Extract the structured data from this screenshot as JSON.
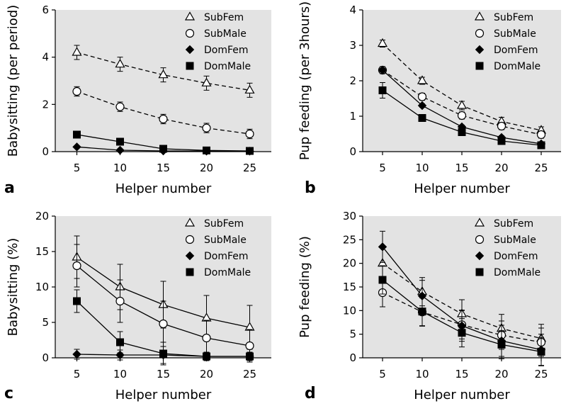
{
  "chart_data": [
    {
      "panel": "a",
      "type": "line",
      "xlabel": "Helper number",
      "ylabel": "Babysitting (per period)",
      "x": [
        5,
        10,
        15,
        20,
        25
      ],
      "xticks": [
        "5",
        "10",
        "15",
        "20",
        "25"
      ],
      "ylim": [
        0,
        6
      ],
      "yticks": [
        "0",
        "2",
        "4",
        "6"
      ],
      "grid": false,
      "legend": "top-right",
      "series": [
        {
          "name": "SubFem",
          "marker": "triangle-open",
          "dash": true,
          "values": [
            4.2,
            3.7,
            3.25,
            2.9,
            2.6
          ],
          "err": [
            0.3,
            0.3,
            0.3,
            0.3,
            0.3
          ]
        },
        {
          "name": "SubMale",
          "marker": "circle-open",
          "dash": true,
          "values": [
            2.55,
            1.9,
            1.38,
            1.0,
            0.75
          ],
          "err": [
            0.2,
            0.2,
            0.2,
            0.2,
            0.2
          ]
        },
        {
          "name": "DomFem",
          "marker": "diamond-filled",
          "dash": false,
          "values": [
            0.2,
            0.06,
            0.03,
            0.02,
            0.02
          ],
          "err": [
            0.02,
            0.02,
            0.02,
            0.02,
            0.02
          ]
        },
        {
          "name": "DomMale",
          "marker": "square-filled",
          "dash": false,
          "values": [
            0.72,
            0.42,
            0.12,
            0.05,
            0.03
          ],
          "err": [
            0.12,
            0.12,
            0.1,
            0.05,
            0.05
          ]
        }
      ]
    },
    {
      "panel": "b",
      "type": "line",
      "xlabel": "Helper number",
      "ylabel": "Pup feeding (per 3hours)",
      "x": [
        5,
        10,
        15,
        20,
        25
      ],
      "xticks": [
        "5",
        "10",
        "15",
        "20",
        "25"
      ],
      "ylim": [
        0,
        4
      ],
      "yticks": [
        "0",
        "1",
        "2",
        "3",
        "4"
      ],
      "grid": false,
      "legend": "top-right",
      "series": [
        {
          "name": "SubFem",
          "marker": "triangle-open",
          "dash": true,
          "values": [
            3.05,
            2.0,
            1.3,
            0.85,
            0.6
          ],
          "err": [
            0.1,
            0.1,
            0.12,
            0.12,
            0.1
          ]
        },
        {
          "name": "SubMale",
          "marker": "circle-open",
          "dash": true,
          "values": [
            2.3,
            1.55,
            1.02,
            0.72,
            0.48
          ],
          "err": [
            0.1,
            0.1,
            0.1,
            0.1,
            0.1
          ]
        },
        {
          "name": "DomFem",
          "marker": "diamond-filled",
          "dash": false,
          "values": [
            2.3,
            1.3,
            0.7,
            0.4,
            0.22
          ],
          "err": [
            0.05,
            0.05,
            0.05,
            0.05,
            0.05
          ]
        },
        {
          "name": "DomMale",
          "marker": "square-filled",
          "dash": false,
          "values": [
            1.73,
            0.95,
            0.55,
            0.3,
            0.18
          ],
          "err": [
            0.22,
            0.1,
            0.1,
            0.1,
            0.1
          ]
        }
      ]
    },
    {
      "panel": "c",
      "type": "line",
      "xlabel": "Helper number",
      "ylabel": "Babysitting (%)",
      "x": [
        5,
        10,
        15,
        20,
        25
      ],
      "xticks": [
        "5",
        "10",
        "15",
        "20",
        "25"
      ],
      "ylim": [
        0,
        20
      ],
      "yticks": [
        "0",
        "5",
        "10",
        "15",
        "20"
      ],
      "grid": false,
      "legend": "top-right",
      "series": [
        {
          "name": "SubFem",
          "marker": "triangle-open",
          "dash": false,
          "values": [
            14.2,
            10.0,
            7.5,
            5.6,
            4.3
          ],
          "err": [
            3.0,
            3.2,
            3.3,
            3.2,
            3.1
          ]
        },
        {
          "name": "SubMale",
          "marker": "circle-open",
          "dash": false,
          "values": [
            13.0,
            8.0,
            4.8,
            2.8,
            1.7
          ],
          "err": [
            3.0,
            3.0,
            3.2,
            2.5,
            2.3
          ]
        },
        {
          "name": "DomFem",
          "marker": "diamond-filled",
          "dash": false,
          "values": [
            0.5,
            0.4,
            0.4,
            0.2,
            0.2
          ],
          "err": [
            0.7,
            0.7,
            1.2,
            0.6,
            0.6
          ]
        },
        {
          "name": "DomMale",
          "marker": "square-filled",
          "dash": false,
          "values": [
            8.0,
            2.2,
            0.6,
            0.2,
            0.2
          ],
          "err": [
            1.6,
            1.5,
            1.6,
            0.5,
            0.5
          ]
        }
      ]
    },
    {
      "panel": "d",
      "type": "line",
      "xlabel": "Helper number",
      "ylabel": "Pup feeding (%)",
      "x": [
        5,
        10,
        15,
        20,
        25
      ],
      "xticks": [
        "5",
        "10",
        "15",
        "20",
        "25"
      ],
      "ylim": [
        0,
        30
      ],
      "yticks": [
        "0",
        "5",
        "10",
        "15",
        "20",
        "25",
        "30"
      ],
      "grid": false,
      "legend": "top-right",
      "series": [
        {
          "name": "SubFem",
          "marker": "triangle-open",
          "dash": true,
          "values": [
            20.0,
            14.0,
            9.3,
            6.2,
            4.1
          ],
          "err": [
            3.3,
            3.0,
            3.0,
            3.0,
            3.0
          ]
        },
        {
          "name": "SubMale",
          "marker": "circle-open",
          "dash": true,
          "values": [
            13.8,
            9.7,
            7.0,
            4.8,
            3.3
          ],
          "err": [
            3.0,
            3.0,
            3.0,
            3.0,
            3.0
          ]
        },
        {
          "name": "DomFem",
          "marker": "diamond-filled",
          "dash": false,
          "values": [
            23.5,
            13.1,
            6.8,
            3.6,
            1.7
          ],
          "err": [
            3.3,
            3.3,
            3.3,
            3.3,
            3.3
          ]
        },
        {
          "name": "DomMale",
          "marker": "square-filled",
          "dash": false,
          "values": [
            16.5,
            9.8,
            5.3,
            2.8,
            1.3
          ],
          "err": [
            3.0,
            3.0,
            3.0,
            3.0,
            3.0
          ]
        }
      ]
    }
  ]
}
